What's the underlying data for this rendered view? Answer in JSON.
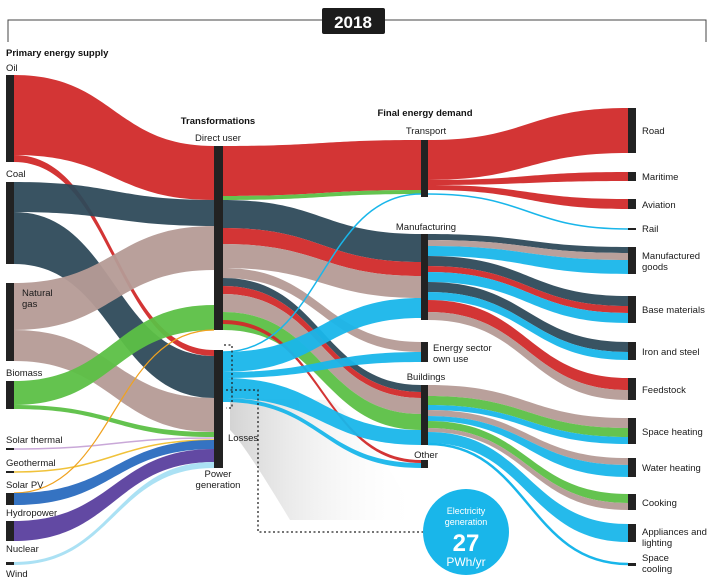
{
  "year": "2018",
  "headers": {
    "primary": "Primary energy supply",
    "transformations": "Transformations",
    "final": "Final energy demand"
  },
  "sources": {
    "oil": "Oil",
    "coal": "Coal",
    "gas_line1": "Natural",
    "gas_line2": "gas",
    "biomass": "Biomass",
    "solar_thermal": "Solar thermal",
    "geothermal": "Geothermal",
    "solar_pv": "Solar PV",
    "hydropower": "Hydropower",
    "nuclear": "Nuclear",
    "wind": "Wind"
  },
  "transformations": {
    "direct_user": "Direct user",
    "losses": "Losses",
    "power_line1": "Power",
    "power_line2": "generation"
  },
  "sectors": {
    "transport": "Transport",
    "manufacturing": "Manufacturing",
    "energy_own_line1": "Energy sector",
    "energy_own_line2": "own use",
    "buildings": "Buildings",
    "other": "Other"
  },
  "end_uses": {
    "road": "Road",
    "maritime": "Maritime",
    "aviation": "Aviation",
    "rail": "Rail",
    "manufactured_line1": "Manufactured",
    "manufactured_line2": "goods",
    "base_materials": "Base materials",
    "iron_steel": "Iron and steel",
    "feedstock": "Feedstock",
    "space_heating": "Space heating",
    "water_heating": "Water heating",
    "cooking": "Cooking",
    "appliances_line1": "Appliances and",
    "appliances_line2": "lighting",
    "cooling_line1": "Space",
    "cooling_line2": "cooling"
  },
  "electricity": {
    "line1": "Electricity",
    "line2": "generation",
    "value": "27",
    "unit": "PWh/yr"
  },
  "colors": {
    "oil": "#d12a2a",
    "coal": "#2e4a5a",
    "gas": "#b59b96",
    "biomass": "#5cc046",
    "electricity": "#19b6ea",
    "solar_thermal": "#c9a8d8",
    "geothermal": "#f0c23a",
    "solar_pv": "#f0a21f",
    "hydropower": "#2a6bbf",
    "nuclear": "#5a3f9e",
    "wind": "#a7dff3",
    "node": "#222222"
  }
}
